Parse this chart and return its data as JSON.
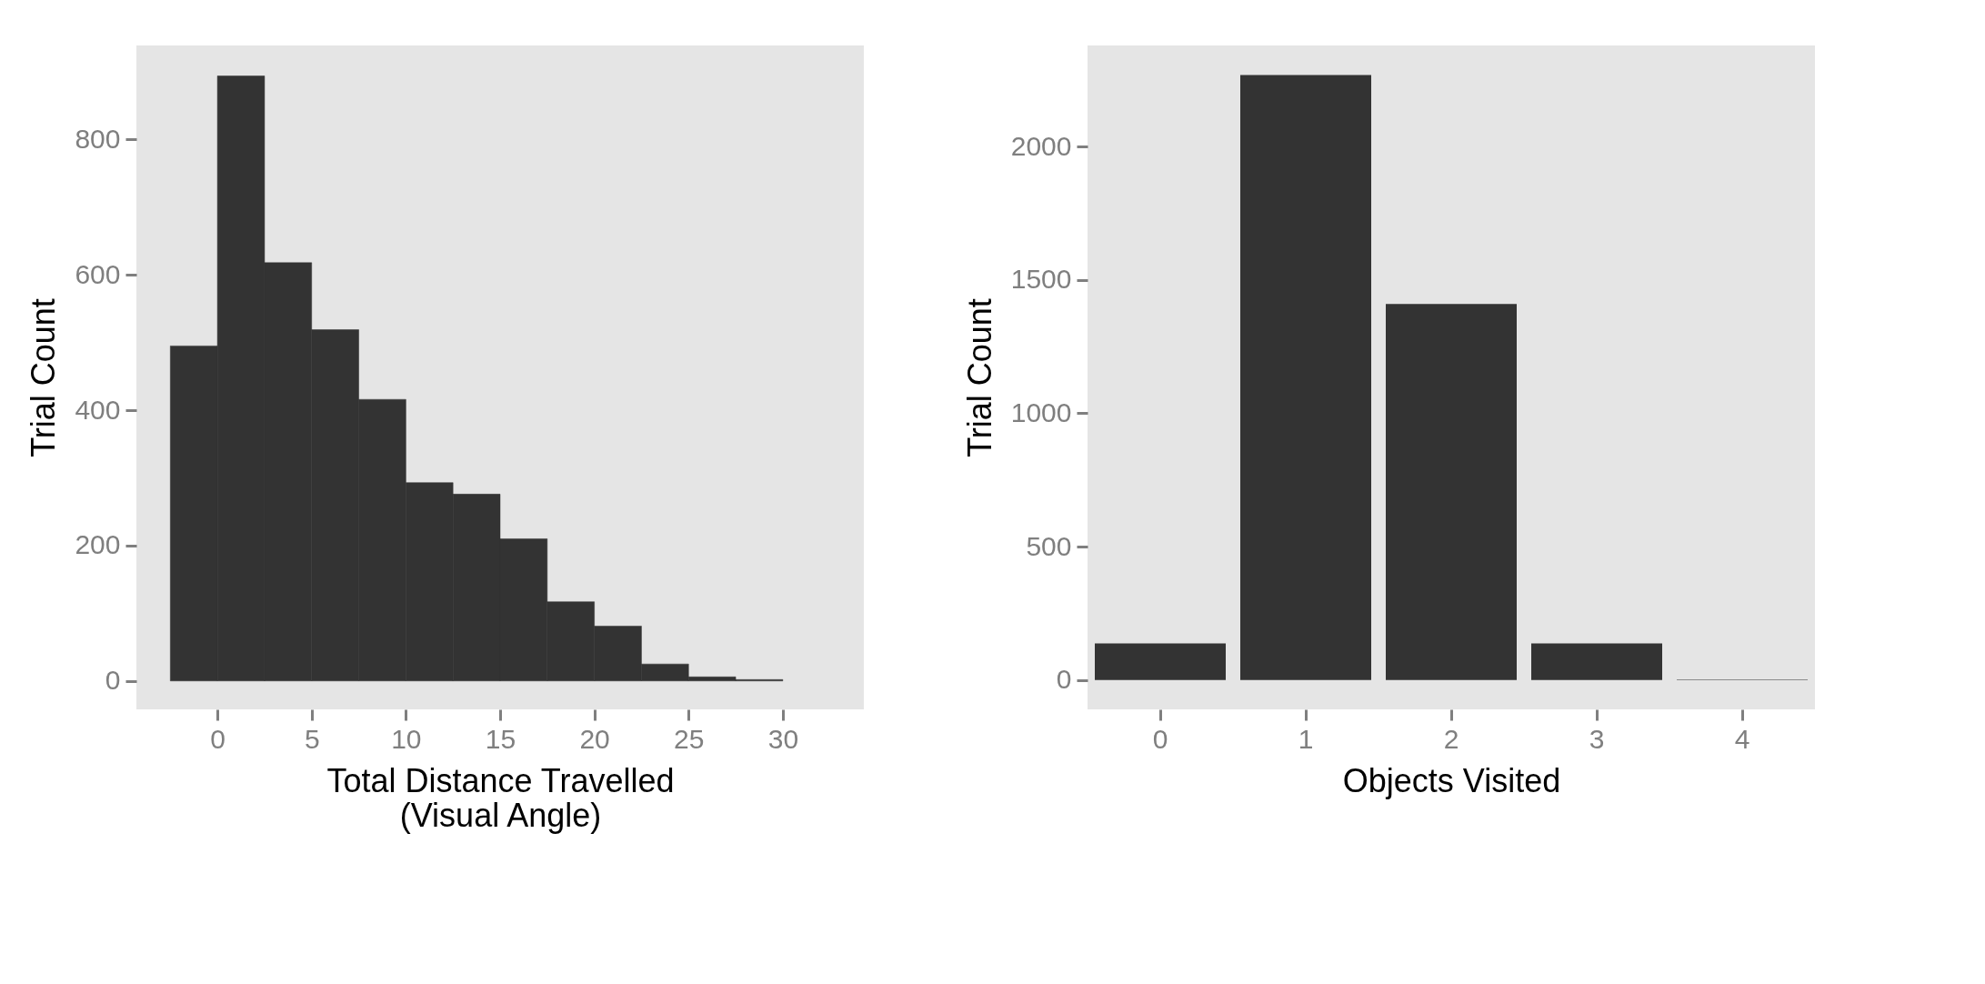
{
  "chart_data": [
    {
      "type": "histogram",
      "xlabel": "Total Distance Travelled\n(Visual Angle)",
      "ylabel": "Trial Count",
      "color": "#333333",
      "bins": [
        -2.5,
        0,
        2.5,
        5,
        7.5,
        10,
        12.5,
        15,
        17.5,
        20,
        22.5,
        25,
        27.5,
        30
      ],
      "values": [
        495,
        894,
        618,
        519,
        416,
        293,
        276,
        210,
        117,
        81,
        25,
        6,
        2
      ],
      "xlim": [
        -4.3,
        34.3
      ],
      "xticks": [
        0,
        5,
        10,
        15,
        20,
        25,
        30
      ],
      "ylim": [
        -42,
        939
      ],
      "yticks": [
        0,
        200,
        400,
        600,
        800
      ]
    },
    {
      "type": "bar",
      "xlabel": "Objects Visited",
      "ylabel": "Trial Count",
      "color": "#333333",
      "categories": [
        "0",
        "1",
        "2",
        "3",
        "4"
      ],
      "values": [
        137,
        2268,
        1410,
        137,
        2
      ],
      "ylim": [
        -110,
        2379
      ],
      "yticks": [
        0,
        500,
        1000,
        1500,
        2000
      ]
    }
  ]
}
